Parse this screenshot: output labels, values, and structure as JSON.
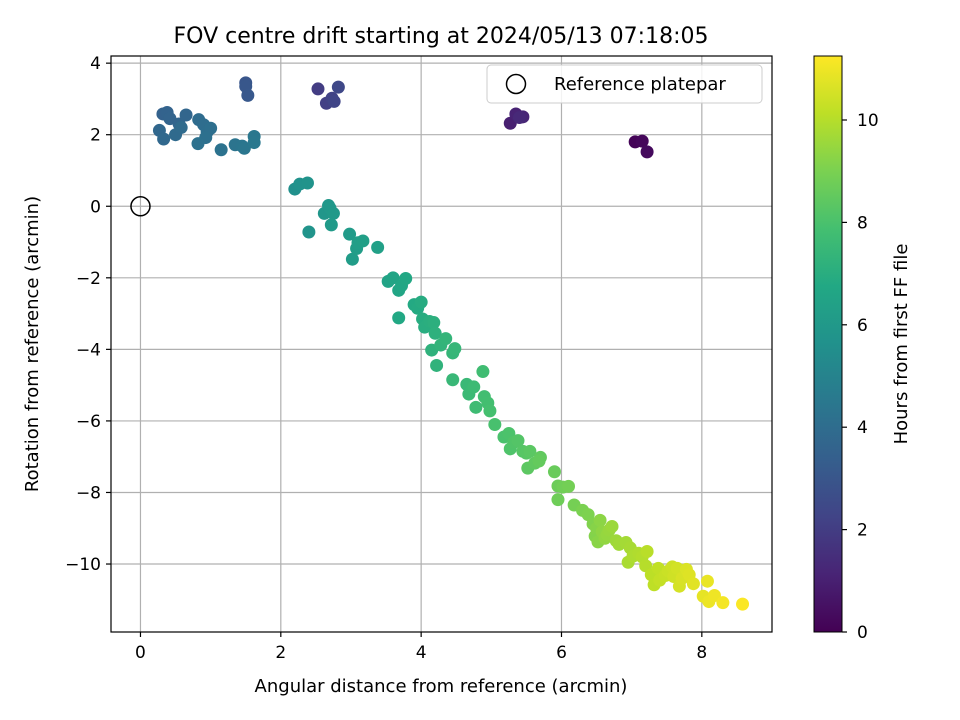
{
  "chart_data": {
    "type": "scatter",
    "title": "FOV centre drift starting at 2024/05/13 07:18:05",
    "xlabel": "Angular distance from reference (arcmin)",
    "ylabel": "Rotation from reference (arcmin)",
    "xlim": [
      -0.42,
      9.0
    ],
    "ylim": [
      -11.9,
      4.2
    ],
    "x_ticks": [
      0,
      2,
      4,
      6,
      8
    ],
    "y_ticks": [
      -10,
      -8,
      -6,
      -4,
      -2,
      0,
      2,
      4
    ],
    "x_tick_labels": [
      "0",
      "2",
      "4",
      "6",
      "8"
    ],
    "y_tick_labels": [
      "−10",
      "−8",
      "−6",
      "−4",
      "−2",
      "0",
      "2",
      "4"
    ],
    "grid": true,
    "colormap": "viridis",
    "colorbar": {
      "label": "Hours from first FF file",
      "range": [
        0,
        11.25
      ],
      "ticks": [
        0,
        2,
        4,
        6,
        8,
        10
      ],
      "tick_labels": [
        "0",
        "2",
        "4",
        "6",
        "8",
        "10"
      ]
    },
    "legend": {
      "placement": "top-right",
      "entries": [
        {
          "label": "Reference platepar",
          "marker": "open-circle"
        }
      ]
    },
    "reference_point": {
      "x": 0,
      "y": 0
    },
    "points": [
      {
        "x": 7.05,
        "y": 1.8,
        "h": 0.1
      },
      {
        "x": 7.15,
        "y": 1.82,
        "h": 0.2
      },
      {
        "x": 7.22,
        "y": 1.52,
        "h": 0.3
      },
      {
        "x": 5.27,
        "y": 2.32,
        "h": 1.0
      },
      {
        "x": 5.35,
        "y": 2.58,
        "h": 1.1
      },
      {
        "x": 5.45,
        "y": 2.5,
        "h": 1.2
      },
      {
        "x": 5.4,
        "y": 2.48,
        "h": 1.3
      },
      {
        "x": 2.53,
        "y": 3.28,
        "h": 2.0
      },
      {
        "x": 2.65,
        "y": 2.88,
        "h": 2.1
      },
      {
        "x": 2.73,
        "y": 3.02,
        "h": 2.2
      },
      {
        "x": 2.76,
        "y": 2.93,
        "h": 2.3
      },
      {
        "x": 2.82,
        "y": 3.33,
        "h": 2.4
      },
      {
        "x": 1.5,
        "y": 3.45,
        "h": 3.0
      },
      {
        "x": 1.5,
        "y": 3.35,
        "h": 3.05
      },
      {
        "x": 1.53,
        "y": 3.1,
        "h": 3.1
      },
      {
        "x": 0.32,
        "y": 2.58,
        "h": 3.5
      },
      {
        "x": 0.38,
        "y": 2.62,
        "h": 3.55
      },
      {
        "x": 0.42,
        "y": 2.45,
        "h": 3.6
      },
      {
        "x": 0.55,
        "y": 2.3,
        "h": 3.65
      },
      {
        "x": 0.65,
        "y": 2.55,
        "h": 3.7
      },
      {
        "x": 0.27,
        "y": 2.12,
        "h": 3.75
      },
      {
        "x": 0.33,
        "y": 1.88,
        "h": 3.8
      },
      {
        "x": 0.5,
        "y": 2.0,
        "h": 3.85
      },
      {
        "x": 0.58,
        "y": 2.2,
        "h": 3.9
      },
      {
        "x": 0.83,
        "y": 2.42,
        "h": 3.95
      },
      {
        "x": 0.9,
        "y": 2.28,
        "h": 4.0
      },
      {
        "x": 0.95,
        "y": 2.08,
        "h": 4.05
      },
      {
        "x": 1.0,
        "y": 2.18,
        "h": 4.1
      },
      {
        "x": 0.93,
        "y": 1.92,
        "h": 4.15
      },
      {
        "x": 0.82,
        "y": 1.75,
        "h": 4.2
      },
      {
        "x": 1.15,
        "y": 1.58,
        "h": 4.25
      },
      {
        "x": 1.35,
        "y": 1.72,
        "h": 4.3
      },
      {
        "x": 1.45,
        "y": 1.68,
        "h": 4.35
      },
      {
        "x": 1.48,
        "y": 1.62,
        "h": 4.4
      },
      {
        "x": 1.62,
        "y": 1.95,
        "h": 4.45
      },
      {
        "x": 1.62,
        "y": 1.78,
        "h": 4.5
      },
      {
        "x": 2.2,
        "y": 0.48,
        "h": 5.6
      },
      {
        "x": 2.27,
        "y": 0.62,
        "h": 5.65
      },
      {
        "x": 2.38,
        "y": 0.65,
        "h": 5.7
      },
      {
        "x": 2.4,
        "y": -0.72,
        "h": 5.75
      },
      {
        "x": 2.62,
        "y": -0.2,
        "h": 5.85
      },
      {
        "x": 2.68,
        "y": 0.02,
        "h": 5.9
      },
      {
        "x": 2.7,
        "y": -0.05,
        "h": 5.95
      },
      {
        "x": 2.75,
        "y": -0.2,
        "h": 6.0
      },
      {
        "x": 2.72,
        "y": -0.52,
        "h": 6.05
      },
      {
        "x": 2.98,
        "y": -0.78,
        "h": 6.1
      },
      {
        "x": 3.02,
        "y": -1.48,
        "h": 6.15
      },
      {
        "x": 3.08,
        "y": -1.18,
        "h": 6.2
      },
      {
        "x": 3.1,
        "y": -1.02,
        "h": 6.25
      },
      {
        "x": 3.17,
        "y": -0.97,
        "h": 6.3
      },
      {
        "x": 3.38,
        "y": -1.15,
        "h": 6.35
      },
      {
        "x": 3.53,
        "y": -2.1,
        "h": 6.5
      },
      {
        "x": 3.6,
        "y": -2.0,
        "h": 6.55
      },
      {
        "x": 3.68,
        "y": -2.35,
        "h": 6.6
      },
      {
        "x": 3.72,
        "y": -2.22,
        "h": 6.65
      },
      {
        "x": 3.78,
        "y": -2.02,
        "h": 6.7
      },
      {
        "x": 3.68,
        "y": -3.12,
        "h": 6.75
      },
      {
        "x": 3.9,
        "y": -2.75,
        "h": 6.8
      },
      {
        "x": 3.95,
        "y": -2.85,
        "h": 6.85
      },
      {
        "x": 4.0,
        "y": -2.68,
        "h": 6.9
      },
      {
        "x": 4.02,
        "y": -3.15,
        "h": 6.95
      },
      {
        "x": 4.05,
        "y": -3.38,
        "h": 7.0
      },
      {
        "x": 4.12,
        "y": -3.22,
        "h": 7.05
      },
      {
        "x": 4.18,
        "y": -3.25,
        "h": 7.1
      },
      {
        "x": 4.2,
        "y": -3.55,
        "h": 7.15
      },
      {
        "x": 4.15,
        "y": -4.02,
        "h": 7.2
      },
      {
        "x": 4.22,
        "y": -4.45,
        "h": 7.25
      },
      {
        "x": 4.28,
        "y": -3.88,
        "h": 7.3
      },
      {
        "x": 4.35,
        "y": -3.7,
        "h": 7.35
      },
      {
        "x": 4.45,
        "y": -4.1,
        "h": 7.4
      },
      {
        "x": 4.48,
        "y": -3.98,
        "h": 7.45
      },
      {
        "x": 4.45,
        "y": -4.85,
        "h": 7.5
      },
      {
        "x": 4.65,
        "y": -4.98,
        "h": 7.55
      },
      {
        "x": 4.68,
        "y": -5.25,
        "h": 7.6
      },
      {
        "x": 4.75,
        "y": -5.05,
        "h": 7.65
      },
      {
        "x": 4.78,
        "y": -5.62,
        "h": 7.7
      },
      {
        "x": 4.88,
        "y": -4.62,
        "h": 7.75
      },
      {
        "x": 4.9,
        "y": -5.32,
        "h": 7.8
      },
      {
        "x": 4.95,
        "y": -5.5,
        "h": 7.85
      },
      {
        "x": 4.98,
        "y": -5.72,
        "h": 7.9
      },
      {
        "x": 5.05,
        "y": -6.1,
        "h": 7.95
      },
      {
        "x": 5.18,
        "y": -6.45,
        "h": 8.0
      },
      {
        "x": 5.25,
        "y": -6.35,
        "h": 8.05
      },
      {
        "x": 5.27,
        "y": -6.78,
        "h": 8.1
      },
      {
        "x": 5.32,
        "y": -6.6,
        "h": 8.15
      },
      {
        "x": 5.38,
        "y": -6.55,
        "h": 8.2
      },
      {
        "x": 5.45,
        "y": -6.85,
        "h": 8.25
      },
      {
        "x": 5.5,
        "y": -6.9,
        "h": 8.3
      },
      {
        "x": 5.55,
        "y": -6.85,
        "h": 8.35
      },
      {
        "x": 5.52,
        "y": -7.32,
        "h": 8.4
      },
      {
        "x": 5.62,
        "y": -7.18,
        "h": 8.45
      },
      {
        "x": 5.7,
        "y": -7.02,
        "h": 8.5
      },
      {
        "x": 5.68,
        "y": -7.12,
        "h": 8.55
      },
      {
        "x": 5.9,
        "y": -7.42,
        "h": 8.65
      },
      {
        "x": 5.95,
        "y": -7.82,
        "h": 8.7
      },
      {
        "x": 5.95,
        "y": -8.2,
        "h": 8.75
      },
      {
        "x": 6.02,
        "y": -7.85,
        "h": 8.8
      },
      {
        "x": 6.1,
        "y": -7.83,
        "h": 8.85
      },
      {
        "x": 6.18,
        "y": -8.35,
        "h": 8.9
      },
      {
        "x": 6.3,
        "y": -8.5,
        "h": 9.0
      },
      {
        "x": 6.38,
        "y": -8.62,
        "h": 9.05
      },
      {
        "x": 6.45,
        "y": -8.88,
        "h": 9.1
      },
      {
        "x": 6.48,
        "y": -9.22,
        "h": 9.15
      },
      {
        "x": 6.5,
        "y": -9.0,
        "h": 9.2
      },
      {
        "x": 6.52,
        "y": -9.38,
        "h": 9.25
      },
      {
        "x": 6.55,
        "y": -8.78,
        "h": 9.3
      },
      {
        "x": 6.58,
        "y": -9.1,
        "h": 9.35
      },
      {
        "x": 6.62,
        "y": -9.28,
        "h": 9.4
      },
      {
        "x": 6.65,
        "y": -9.18,
        "h": 9.45
      },
      {
        "x": 6.68,
        "y": -9.05,
        "h": 9.5
      },
      {
        "x": 6.72,
        "y": -8.95,
        "h": 9.55
      },
      {
        "x": 6.78,
        "y": -9.35,
        "h": 9.6
      },
      {
        "x": 6.82,
        "y": -9.45,
        "h": 9.65
      },
      {
        "x": 6.92,
        "y": -9.4,
        "h": 9.7
      },
      {
        "x": 6.98,
        "y": -9.55,
        "h": 9.75
      },
      {
        "x": 6.95,
        "y": -9.95,
        "h": 9.8
      },
      {
        "x": 7.02,
        "y": -9.78,
        "h": 9.85
      },
      {
        "x": 7.1,
        "y": -9.7,
        "h": 9.9
      },
      {
        "x": 7.15,
        "y": -9.8,
        "h": 9.95
      },
      {
        "x": 7.2,
        "y": -10.05,
        "h": 10.0
      },
      {
        "x": 7.22,
        "y": -9.65,
        "h": 10.05
      },
      {
        "x": 7.28,
        "y": -10.3,
        "h": 10.1
      },
      {
        "x": 7.32,
        "y": -10.58,
        "h": 10.15
      },
      {
        "x": 7.38,
        "y": -10.12,
        "h": 10.2
      },
      {
        "x": 7.4,
        "y": -10.45,
        "h": 10.25
      },
      {
        "x": 7.48,
        "y": -10.32,
        "h": 10.3
      },
      {
        "x": 7.52,
        "y": -10.2,
        "h": 10.35
      },
      {
        "x": 7.58,
        "y": -10.08,
        "h": 10.4
      },
      {
        "x": 7.6,
        "y": -10.35,
        "h": 10.45
      },
      {
        "x": 7.65,
        "y": -10.12,
        "h": 10.5
      },
      {
        "x": 7.68,
        "y": -10.62,
        "h": 10.55
      },
      {
        "x": 7.72,
        "y": -10.4,
        "h": 10.6
      },
      {
        "x": 7.78,
        "y": -10.15,
        "h": 10.65
      },
      {
        "x": 7.82,
        "y": -10.3,
        "h": 10.7
      },
      {
        "x": 7.88,
        "y": -10.55,
        "h": 10.75
      },
      {
        "x": 8.02,
        "y": -10.9,
        "h": 10.85
      },
      {
        "x": 8.08,
        "y": -10.48,
        "h": 10.9
      },
      {
        "x": 8.1,
        "y": -11.05,
        "h": 10.95
      },
      {
        "x": 8.18,
        "y": -10.88,
        "h": 11.0
      },
      {
        "x": 8.3,
        "y": -11.08,
        "h": 11.1
      },
      {
        "x": 8.58,
        "y": -11.12,
        "h": 11.2
      }
    ]
  }
}
